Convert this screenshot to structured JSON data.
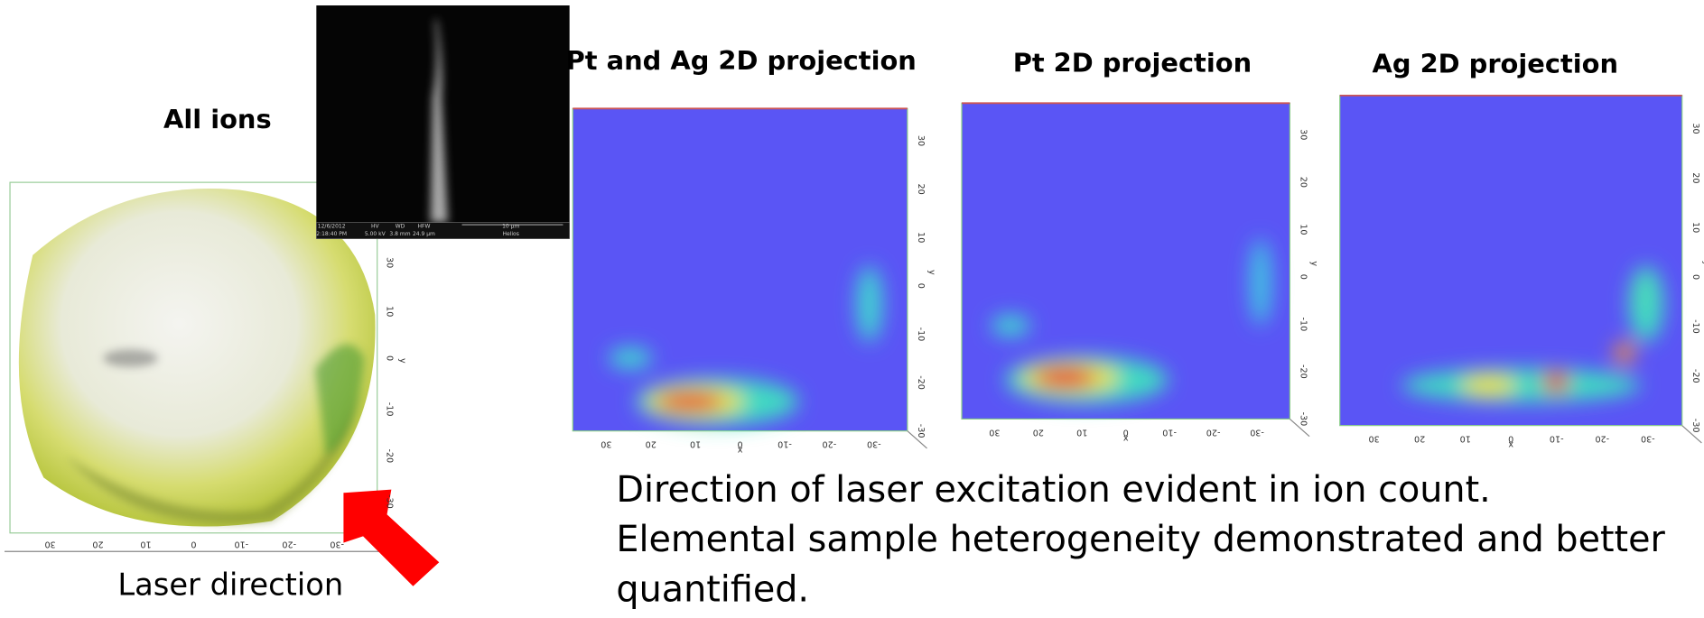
{
  "ion_map": {
    "title": "All ions",
    "caption": "Laser direction",
    "x_ticks": [
      "30",
      "20",
      "10",
      "0",
      "-10",
      "-20",
      "-30"
    ],
    "y_ticks": [
      "30",
      "10",
      "0",
      "-10",
      "-20",
      "-30"
    ],
    "y_label": "y"
  },
  "sem_image": {
    "date": "12/6/2012",
    "time": "2:18:40 PM",
    "hv_label": "HV",
    "hv": "5.00 kV",
    "wd_label": "WD",
    "wd": "3.8 mm",
    "hfw_label": "HFW",
    "hfw": "24.9 µm",
    "scale": "10 µm",
    "instrument": "Helios"
  },
  "projections": [
    {
      "title": "Pt and Ag 2D projection"
    },
    {
      "title": "Pt 2D projection"
    },
    {
      "title": "Ag 2D projection"
    }
  ],
  "projection_axes": {
    "x_ticks": [
      "30",
      "20",
      "10",
      "0",
      "-10",
      "-20",
      "-30"
    ],
    "x_label": "x",
    "y_ticks": [
      "30",
      "20",
      "10",
      "0",
      "-10",
      "-20",
      "-30"
    ],
    "y_label": "y"
  },
  "text": [
    "Direction of laser excitation evident in ion count.",
    "Elemental sample heterogeneity demonstrated and better",
    "quantified."
  ]
}
